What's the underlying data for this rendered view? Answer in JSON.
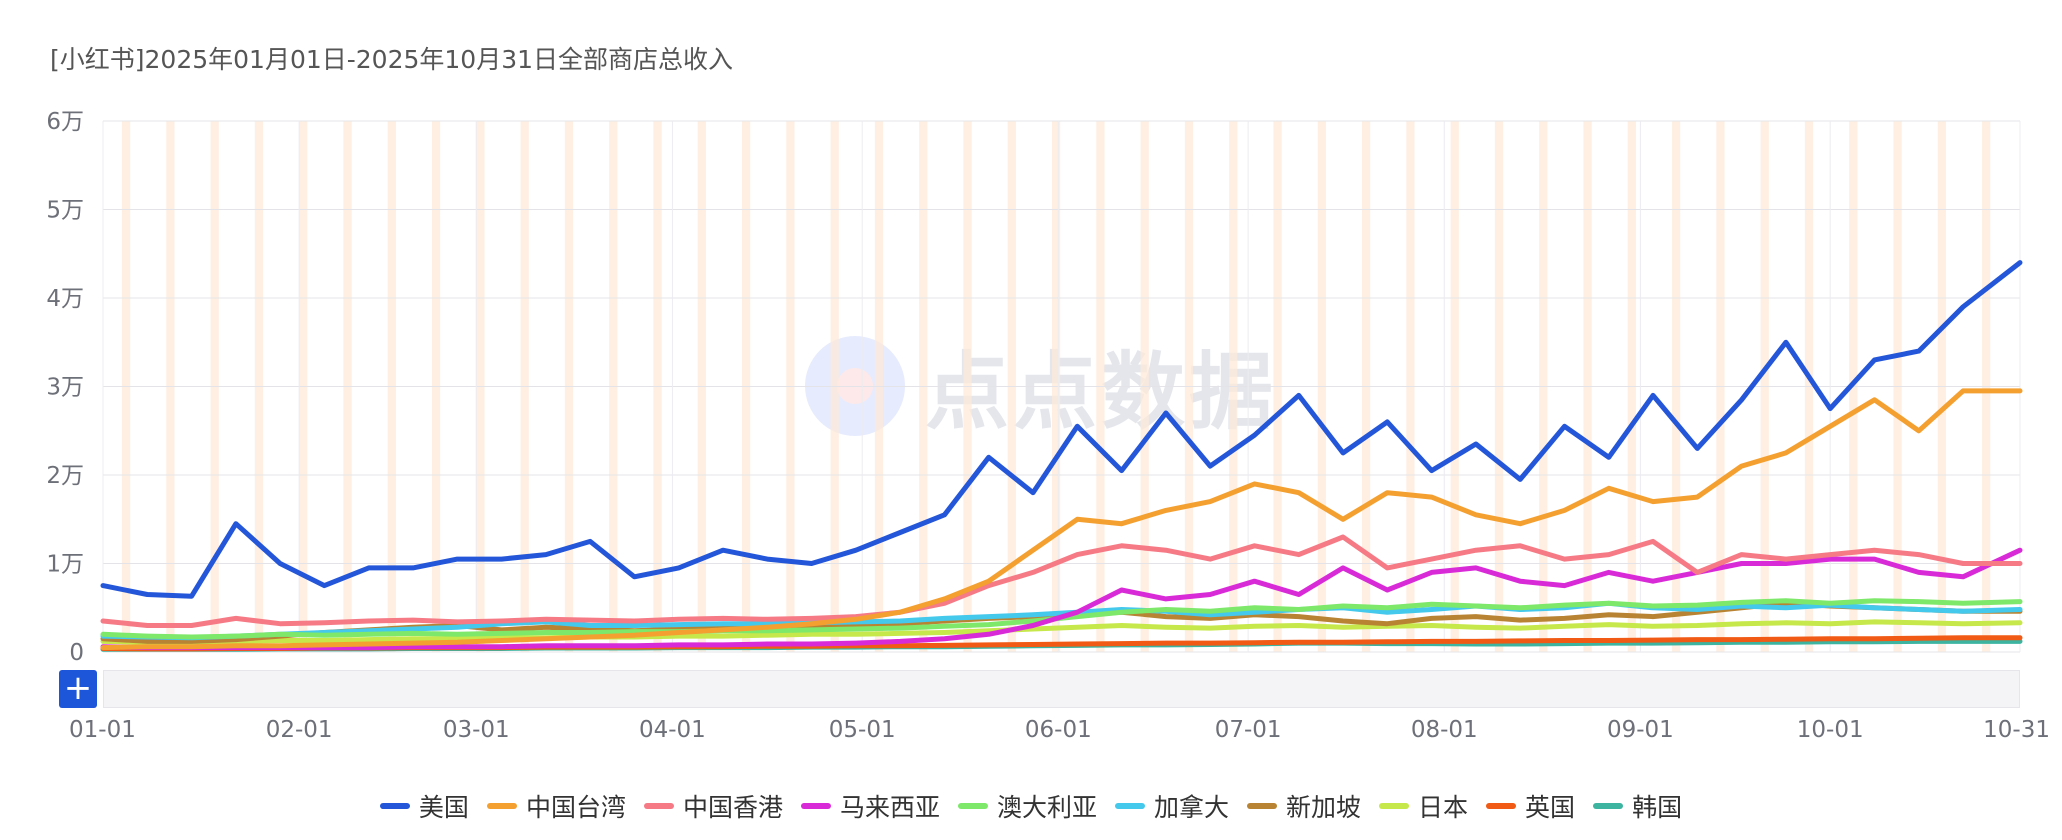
{
  "chart_data": {
    "type": "line",
    "title": "[小红书]2025年01月01日-2025年10月31日全部商店总收入",
    "xlabel": "",
    "ylabel": "",
    "ylim": [
      0,
      60000
    ],
    "y_ticks": [
      "0",
      "1万",
      "2万",
      "3万",
      "4万",
      "5万",
      "6万"
    ],
    "y_tick_values": [
      0,
      10000,
      20000,
      30000,
      40000,
      50000,
      60000
    ],
    "x_ticks": [
      "01-01",
      "02-01",
      "03-01",
      "04-01",
      "05-01",
      "06-01",
      "07-01",
      "08-01",
      "09-01",
      "10-01",
      "10-31"
    ],
    "x_tick_days": [
      0,
      31,
      59,
      90,
      120,
      151,
      181,
      212,
      243,
      273,
      303
    ],
    "x_days": [
      0,
      7,
      14,
      21,
      28,
      35,
      42,
      49,
      56,
      63,
      70,
      77,
      84,
      91,
      98,
      105,
      112,
      119,
      126,
      133,
      140,
      147,
      154,
      161,
      168,
      175,
      182,
      189,
      196,
      203,
      210,
      217,
      224,
      231,
      238,
      245,
      252,
      259,
      266,
      273,
      280,
      287,
      294,
      303
    ],
    "series": [
      {
        "name": "美国",
        "color": "#2356d8",
        "values": [
          7500,
          6500,
          6300,
          14500,
          10000,
          7500,
          9500,
          9500,
          10500,
          10500,
          11000,
          12500,
          8500,
          9500,
          11500,
          10500,
          10000,
          11500,
          13500,
          15500,
          22000,
          18000,
          25500,
          20500,
          27000,
          21000,
          24500,
          29000,
          22500,
          26000,
          20500,
          23500,
          19500,
          25500,
          22000,
          29000,
          23000,
          28500,
          35000,
          27500,
          33000,
          34000,
          39000,
          44000
        ]
      },
      {
        "name": "中国台湾",
        "color": "#f4a030",
        "values": [
          500,
          600,
          600,
          700,
          700,
          800,
          900,
          1000,
          1100,
          1300,
          1500,
          1700,
          1900,
          2200,
          2500,
          2800,
          3200,
          3700,
          4500,
          6000,
          8000,
          11500,
          15000,
          14500,
          16000,
          17000,
          19000,
          18000,
          15000,
          18000,
          17500,
          15500,
          14500,
          16000,
          18500,
          17000,
          17500,
          21000,
          22500,
          25500,
          28500,
          25000,
          29500,
          29500
        ]
      },
      {
        "name": "中国香港",
        "color": "#f57a86",
        "values": [
          3500,
          3000,
          3000,
          3800,
          3200,
          3300,
          3500,
          3600,
          3400,
          3500,
          3700,
          3600,
          3500,
          3700,
          3800,
          3700,
          3800,
          4000,
          4500,
          5500,
          7500,
          9000,
          11000,
          12000,
          11500,
          10500,
          12000,
          11000,
          13000,
          9500,
          10500,
          11500,
          12000,
          10500,
          11000,
          12500,
          9000,
          11000,
          10500,
          11000,
          11500,
          11000,
          10000,
          10000
        ]
      },
      {
        "name": "马来西亚",
        "color": "#d92ad8",
        "values": [
          600,
          500,
          500,
          500,
          500,
          500,
          500,
          600,
          600,
          600,
          700,
          700,
          700,
          800,
          800,
          900,
          900,
          1000,
          1200,
          1500,
          2000,
          3000,
          4500,
          7000,
          6000,
          6500,
          8000,
          6500,
          9500,
          7000,
          9000,
          9500,
          8000,
          7500,
          9000,
          8000,
          9000,
          10000,
          10000,
          10500,
          10500,
          9000,
          8500,
          11500
        ]
      },
      {
        "name": "澳大利亚",
        "color": "#7de86a",
        "values": [
          2000,
          1800,
          1700,
          1800,
          2000,
          1900,
          2000,
          2100,
          2000,
          2100,
          2200,
          2200,
          2300,
          2300,
          2400,
          2400,
          2500,
          2600,
          2700,
          2900,
          3100,
          3500,
          4000,
          4500,
          4800,
          4600,
          5000,
          4800,
          5200,
          5000,
          5400,
          5200,
          5000,
          5300,
          5500,
          5200,
          5300,
          5600,
          5800,
          5500,
          5800,
          5700,
          5500,
          5700
        ]
      },
      {
        "name": "加拿大",
        "color": "#44c8ec",
        "values": [
          1800,
          1700,
          1600,
          1800,
          2000,
          2200,
          2400,
          2600,
          2800,
          3200,
          3400,
          3000,
          3000,
          3100,
          3200,
          3200,
          3300,
          3400,
          3500,
          3800,
          4000,
          4200,
          4500,
          4800,
          4600,
          4200,
          4500,
          4800,
          5000,
          4500,
          4800,
          5200,
          4800,
          5000,
          5500,
          5000,
          4800,
          5200,
          5000,
          5300,
          5000,
          4800,
          4600,
          4800
        ]
      },
      {
        "name": "新加坡",
        "color": "#b88434",
        "values": [
          1500,
          1200,
          1200,
          1400,
          1800,
          2200,
          2500,
          2800,
          3000,
          2500,
          2800,
          2600,
          2400,
          2600,
          2800,
          2700,
          2800,
          3000,
          3200,
          3500,
          3800,
          4000,
          4200,
          4500,
          4000,
          3800,
          4200,
          4000,
          3500,
          3200,
          3800,
          4000,
          3600,
          3800,
          4200,
          4000,
          4500,
          5000,
          5500,
          5200,
          5000,
          4800,
          4600,
          4600
        ]
      },
      {
        "name": "日本",
        "color": "#c6e84a",
        "values": [
          1200,
          1100,
          1100,
          1200,
          1300,
          1300,
          1400,
          1500,
          1500,
          1600,
          1600,
          1700,
          1700,
          1800,
          1800,
          1900,
          2000,
          2000,
          2100,
          2200,
          2400,
          2600,
          2800,
          3000,
          2800,
          2700,
          2900,
          3000,
          2800,
          2900,
          3000,
          2800,
          2700,
          2900,
          3100,
          2900,
          3000,
          3200,
          3300,
          3200,
          3400,
          3300,
          3200,
          3300
        ]
      },
      {
        "name": "英国",
        "color": "#f05a14",
        "values": [
          400,
          350,
          350,
          400,
          400,
          450,
          450,
          500,
          500,
          500,
          550,
          550,
          550,
          600,
          600,
          650,
          650,
          700,
          700,
          750,
          800,
          850,
          900,
          950,
          1000,
          1000,
          1050,
          1100,
          1100,
          1150,
          1200,
          1200,
          1250,
          1300,
          1300,
          1350,
          1400,
          1400,
          1450,
          1500,
          1500,
          1550,
          1600,
          1600
        ]
      },
      {
        "name": "韩国",
        "color": "#3cb4a0",
        "values": [
          300,
          300,
          300,
          300,
          350,
          350,
          350,
          400,
          400,
          400,
          450,
          450,
          450,
          500,
          500,
          500,
          550,
          550,
          600,
          600,
          650,
          700,
          750,
          800,
          800,
          850,
          900,
          1000,
          1000,
          950,
          950,
          900,
          900,
          950,
          1000,
          1000,
          1050,
          1100,
          1100,
          1150,
          1150,
          1200,
          1200,
          1200
        ]
      }
    ]
  },
  "watermark": {
    "text": "点点数据"
  },
  "zoom": {
    "button_label": "+"
  }
}
